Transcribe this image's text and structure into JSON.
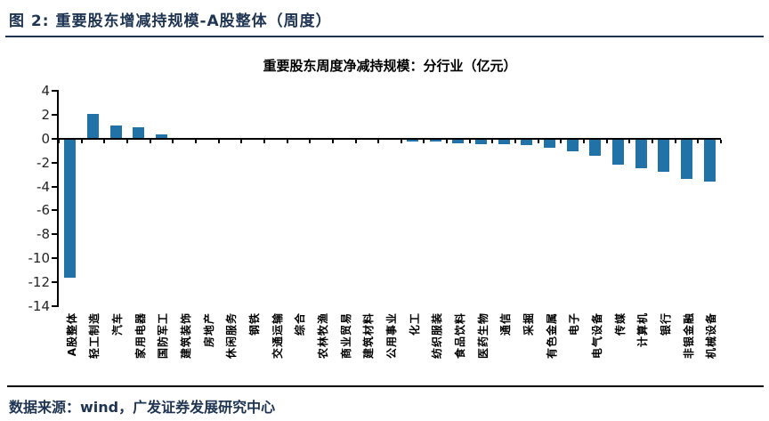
{
  "header": {
    "title": "图 2: 重要股东增减持规模-A股整体（周度）"
  },
  "footer": {
    "source": "数据来源：wind，广发证券发展研究中心"
  },
  "colors": {
    "bar": "#2072a7",
    "navy": "#1e3452",
    "axis": "#000000"
  },
  "chart_data": {
    "type": "bar",
    "title": "重要股东周度净减持规模：分行业（亿元）",
    "categories": [
      "A股整体",
      "轻工制造",
      "汽车",
      "家用电器",
      "国防军工",
      "建筑装饰",
      "房地产",
      "休闲服务",
      "钢铁",
      "交通运输",
      "综合",
      "农林牧渔",
      "商业贸易",
      "建筑材料",
      "公用事业",
      "化工",
      "纺织服装",
      "食品饮料",
      "医药生物",
      "通信",
      "采掘",
      "有色金属",
      "电子",
      "电气设备",
      "传媒",
      "计算机",
      "银行",
      "非银金融",
      "机械设备"
    ],
    "values": [
      -11.6,
      2.1,
      1.1,
      1.0,
      0.4,
      0.08,
      0.0,
      0.0,
      0.0,
      0.0,
      0.0,
      0.0,
      0.0,
      0.0,
      0.0,
      -0.15,
      -0.15,
      -0.3,
      -0.35,
      -0.4,
      -0.45,
      -0.65,
      -1.0,
      -1.35,
      -2.1,
      -2.4,
      -2.7,
      -3.3,
      -3.5
    ],
    "ylabel": "",
    "xlabel": "",
    "ylim": [
      -14,
      4
    ],
    "yticks": [
      4,
      2,
      0,
      -2,
      -4,
      -6,
      -8,
      -10,
      -12,
      -14
    ],
    "grid": false,
    "legend": "none",
    "bar_color": "#2072a7"
  }
}
